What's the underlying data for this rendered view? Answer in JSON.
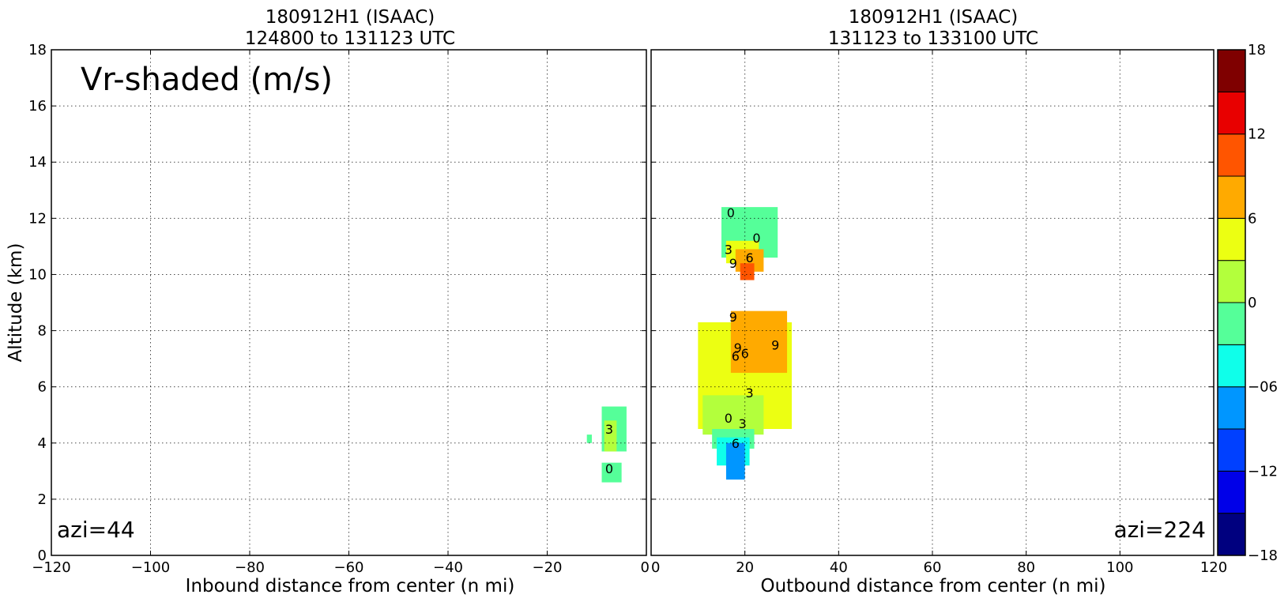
{
  "chart_data": [
    {
      "type": "heatmap",
      "panel": "left",
      "title": "180912H1 (ISAAC)",
      "subtitle": "124800 to 131123 UTC",
      "xlabel": "Inbound distance from center (n mi)",
      "ylabel": "Altitude (km)",
      "xlim": [
        -120,
        0
      ],
      "ylim": [
        0,
        18
      ],
      "x_ticks": [
        "−120",
        "−100",
        "−80",
        "−60",
        "−40",
        "−20",
        "0"
      ],
      "y_ticks": [
        "0",
        "2",
        "4",
        "6",
        "8",
        "10",
        "12",
        "14",
        "16",
        "18"
      ],
      "grid": true,
      "field_label": "Vr-shaded (m/s)",
      "annotation": "azi=44",
      "contour_labels": [
        "3",
        "0"
      ],
      "regions": [
        {
          "x": [
            -9,
            -4
          ],
          "y": [
            3.7,
            5.3
          ],
          "value": 0.5,
          "color": "#55ff99"
        },
        {
          "x": [
            -8.5,
            -6
          ],
          "y": [
            3.7,
            4.8
          ],
          "value": 4,
          "color": "#b3ff3c"
        },
        {
          "x": [
            -9,
            -5
          ],
          "y": [
            2.6,
            3.3
          ],
          "value": 0.5,
          "color": "#55ff99"
        },
        {
          "x": [
            -12,
            -11
          ],
          "y": [
            4.0,
            4.3
          ],
          "value": 0.5,
          "color": "#55ff99"
        }
      ]
    },
    {
      "type": "heatmap",
      "panel": "right",
      "title": "180912H1 (ISAAC)",
      "subtitle": "131123 to 133100 UTC",
      "xlabel": "Outbound distance from center (n mi)",
      "xlim": [
        0,
        120
      ],
      "ylim": [
        0,
        18
      ],
      "x_ticks": [
        "0",
        "20",
        "40",
        "60",
        "80",
        "100",
        "120"
      ],
      "grid": true,
      "annotation": "azi=224",
      "contour_labels": [
        "0",
        "0",
        "3",
        "6",
        "9",
        "9",
        "6",
        "9",
        "9",
        "6",
        "3",
        "0",
        "3",
        "6"
      ],
      "regions": [
        {
          "x": [
            15,
            27
          ],
          "y": [
            10.6,
            12.4
          ],
          "value": 0.5,
          "color": "#55ff99"
        },
        {
          "x": [
            16,
            23
          ],
          "y": [
            10.4,
            11.2
          ],
          "value": 4.5,
          "color": "#ecff12"
        },
        {
          "x": [
            18,
            24
          ],
          "y": [
            10.1,
            10.9
          ],
          "value": 7.5,
          "color": "#ffaa00"
        },
        {
          "x": [
            19,
            22
          ],
          "y": [
            9.8,
            10.4
          ],
          "value": 10.5,
          "color": "#ff5500"
        },
        {
          "x": [
            10,
            30
          ],
          "y": [
            4.5,
            8.3
          ],
          "value": 4.5,
          "color": "#ecff12"
        },
        {
          "x": [
            17,
            29
          ],
          "y": [
            6.5,
            8.7
          ],
          "value": 7.5,
          "color": "#ffaa00"
        },
        {
          "x": [
            11,
            24
          ],
          "y": [
            4.3,
            5.7
          ],
          "value": 1.5,
          "color": "#b3ff3c"
        },
        {
          "x": [
            13,
            22
          ],
          "y": [
            3.8,
            4.5
          ],
          "value": -1.5,
          "color": "#55ff99"
        },
        {
          "x": [
            14,
            21
          ],
          "y": [
            3.2,
            4.2
          ],
          "value": -4.5,
          "color": "#0fffea"
        },
        {
          "x": [
            16,
            20
          ],
          "y": [
            2.7,
            4.0
          ],
          "value": -7.5,
          "color": "#0096ff"
        }
      ]
    }
  ],
  "colorbar": {
    "type": "colorbar",
    "vmin": -18,
    "vmax": 18,
    "step": 3,
    "tick_labels": [
      "18",
      "12",
      "6",
      "0",
      "−06",
      "−12",
      "−18"
    ],
    "tick_values": [
      18,
      12,
      6,
      0,
      -6,
      -12,
      -18
    ],
    "colors": [
      "#00007f",
      "#0000e8",
      "#0040ff",
      "#0096ff",
      "#0fffea",
      "#55ff99",
      "#b3ff3c",
      "#ecff12",
      "#ffaa00",
      "#ff5500",
      "#e80000",
      "#7f0000"
    ]
  }
}
